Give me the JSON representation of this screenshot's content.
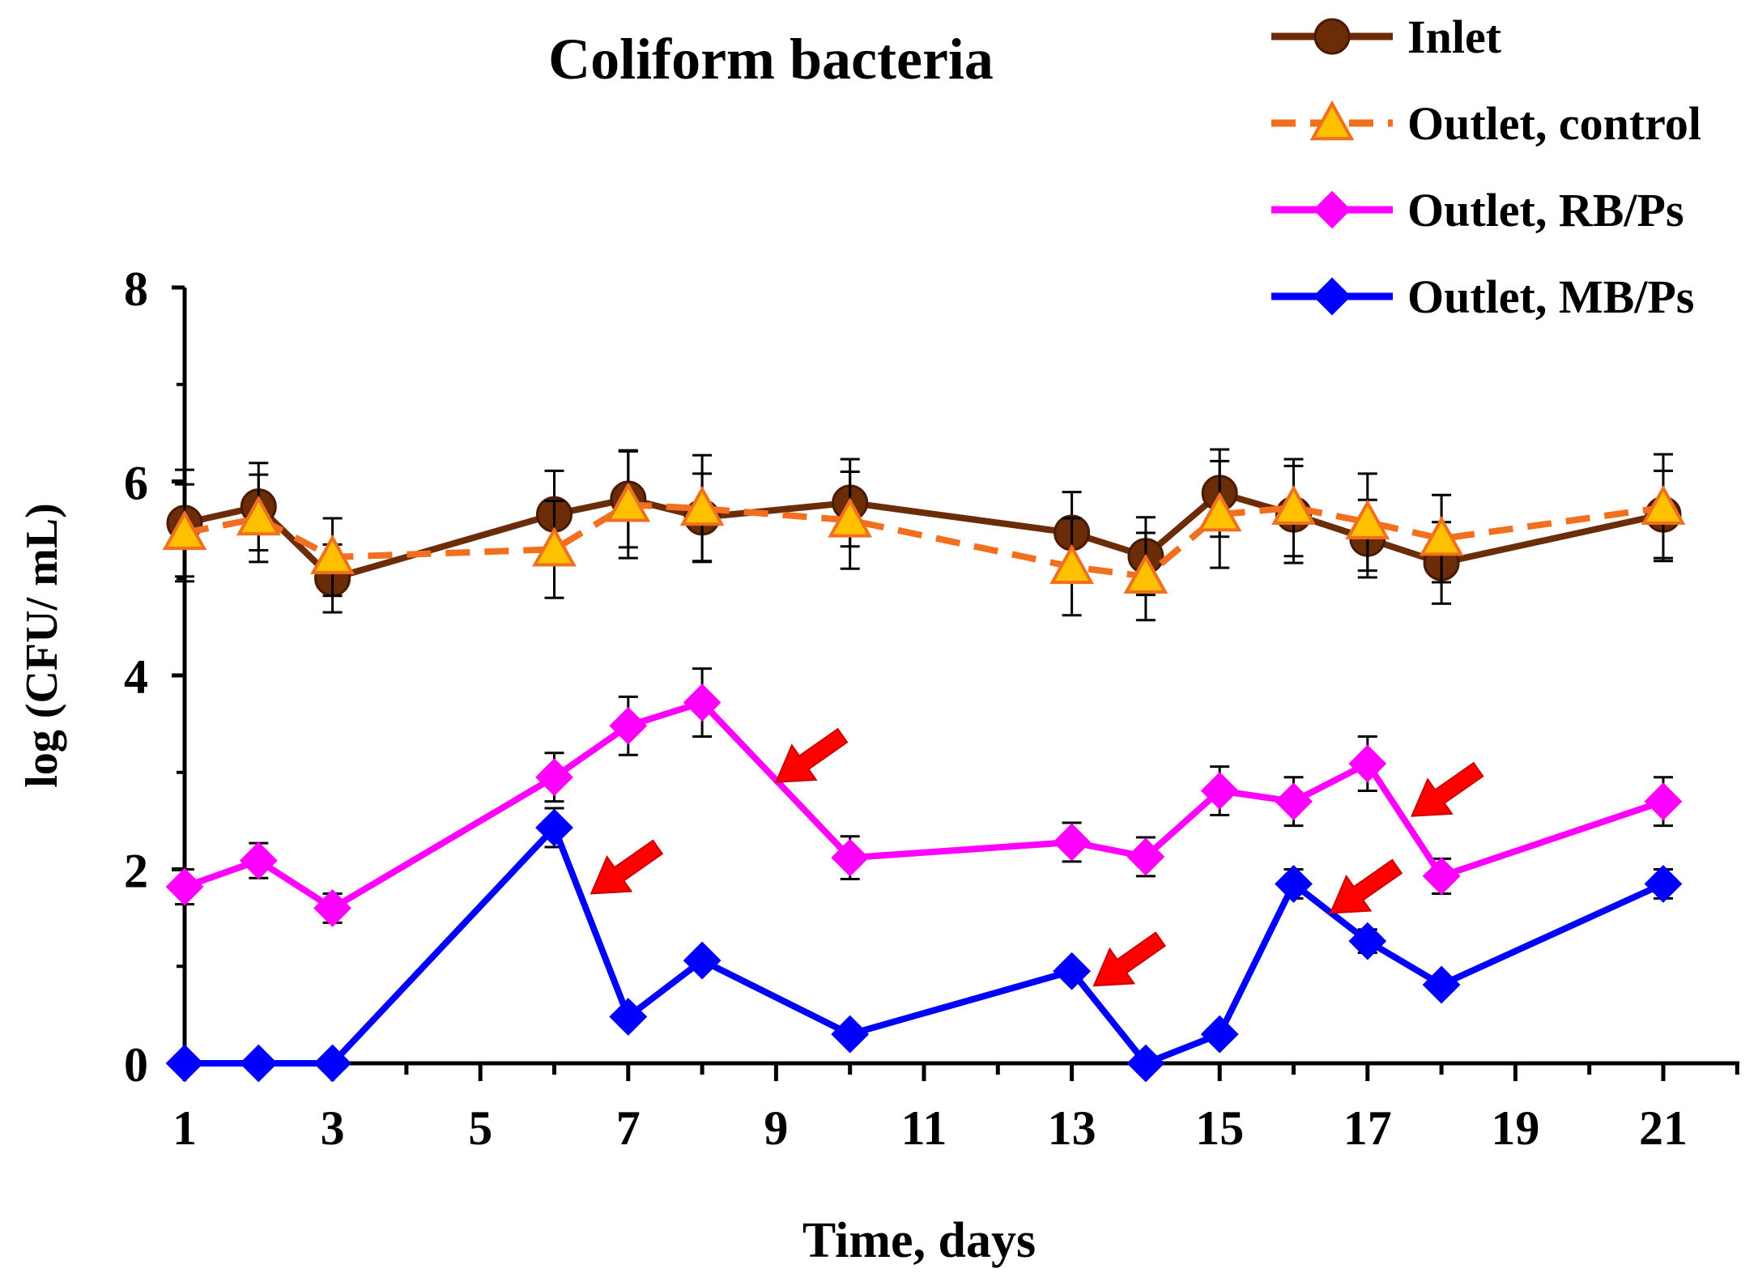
{
  "chart_data": {
    "type": "line",
    "title": "Coliform bacteria",
    "xlabel": "Time, days",
    "ylabel": "log (CFU/ mL)",
    "xlim": [
      1,
      22
    ],
    "ylim": [
      0,
      8
    ],
    "x_ticks": [
      1,
      3,
      5,
      7,
      9,
      11,
      13,
      15,
      17,
      19,
      21
    ],
    "y_ticks": [
      0,
      2,
      4,
      6,
      8
    ],
    "legend_position": "top-right",
    "series": [
      {
        "name": "Inlet",
        "color": "#6b2c08",
        "marker": "circle",
        "dashed": false,
        "x": [
          1,
          2,
          3,
          6,
          7,
          8,
          10,
          13,
          14,
          15,
          16,
          17,
          18,
          21
        ],
        "y": [
          5.57,
          5.74,
          5.0,
          5.66,
          5.82,
          5.63,
          5.78,
          5.47,
          5.23,
          5.88,
          5.66,
          5.41,
          5.16,
          5.66
        ],
        "err": [
          0.55,
          0.45,
          0.35,
          0.45,
          0.5,
          0.45,
          0.45,
          0.42,
          0.4,
          0.45,
          0.5,
          0.4,
          0.42,
          0.45
        ]
      },
      {
        "name": "Outlet, control",
        "color": "#f07020",
        "marker": "triangle",
        "marker_fill": "#ffc000",
        "dashed": true,
        "x": [
          1,
          2,
          3,
          6,
          7,
          8,
          10,
          13,
          14,
          15,
          16,
          17,
          18,
          21
        ],
        "y": [
          5.47,
          5.62,
          5.22,
          5.3,
          5.76,
          5.72,
          5.6,
          5.12,
          5.02,
          5.66,
          5.73,
          5.58,
          5.41,
          5.73
        ],
        "err": [
          0.5,
          0.45,
          0.4,
          0.5,
          0.55,
          0.55,
          0.5,
          0.5,
          0.45,
          0.55,
          0.5,
          0.5,
          0.45,
          0.55
        ]
      },
      {
        "name": "Outlet, RB/Ps",
        "color": "#ff00ff",
        "marker": "diamond",
        "dashed": false,
        "x": [
          1,
          2,
          3,
          6,
          7,
          8,
          10,
          13,
          14,
          15,
          16,
          17,
          18,
          21
        ],
        "y": [
          1.82,
          2.09,
          1.6,
          2.95,
          3.48,
          3.72,
          2.12,
          2.28,
          2.13,
          2.81,
          2.7,
          3.09,
          1.93,
          2.7
        ],
        "err": [
          0.18,
          0.18,
          0.15,
          0.25,
          0.3,
          0.35,
          0.22,
          0.2,
          0.2,
          0.25,
          0.25,
          0.28,
          0.18,
          0.25
        ]
      },
      {
        "name": "Outlet, MB/Ps",
        "color": "#0000ff",
        "marker": "diamond",
        "dashed": false,
        "x": [
          1,
          2,
          3,
          6,
          7,
          8,
          10,
          13,
          14,
          15,
          16,
          17,
          18,
          21
        ],
        "y": [
          0.0,
          0.0,
          0.0,
          2.43,
          0.48,
          1.06,
          0.3,
          0.95,
          0.0,
          0.3,
          1.85,
          1.26,
          0.81,
          1.85
        ],
        "err": [
          0.0,
          0.0,
          0.0,
          0.2,
          0.0,
          0.0,
          0.0,
          0.0,
          0.0,
          0.0,
          0.15,
          0.12,
          0.0,
          0.15
        ]
      }
    ],
    "annotations": [
      {
        "type": "arrow",
        "color": "#ff0000",
        "target_x": 9.0,
        "target_y": 2.9
      },
      {
        "type": "arrow",
        "color": "#ff0000",
        "target_x": 6.5,
        "target_y": 1.75
      },
      {
        "type": "arrow",
        "color": "#ff0000",
        "target_x": 13.3,
        "target_y": 0.8
      },
      {
        "type": "arrow",
        "color": "#ff0000",
        "target_x": 16.5,
        "target_y": 1.55
      },
      {
        "type": "arrow",
        "color": "#ff0000",
        "target_x": 17.6,
        "target_y": 2.55
      }
    ]
  }
}
